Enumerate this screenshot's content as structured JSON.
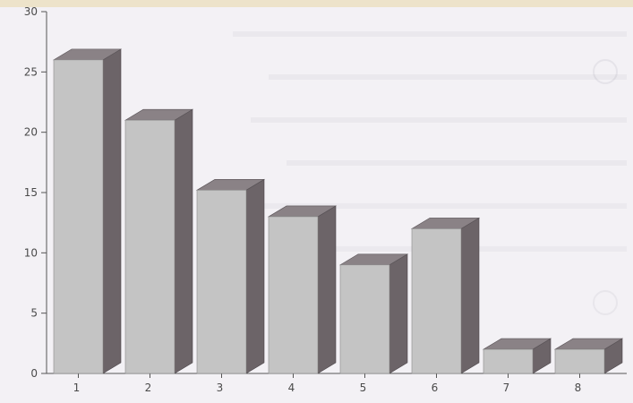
{
  "chart_data": {
    "type": "bar",
    "style": "3d",
    "categories": [
      "1",
      "2",
      "3",
      "4",
      "5",
      "6",
      "7",
      "8"
    ],
    "values": [
      26,
      21,
      15.2,
      13,
      9,
      12,
      2,
      2
    ],
    "y_ticks": [
      "0",
      "5",
      "10",
      "15",
      "20",
      "25",
      "30"
    ],
    "ylim": [
      0,
      30
    ],
    "grid": false,
    "legend": "none",
    "colors": {
      "bar_front": "#c4c4c4",
      "bar_side": "#6c6468",
      "bar_top": "#8a8286",
      "axis": "#555555"
    }
  }
}
